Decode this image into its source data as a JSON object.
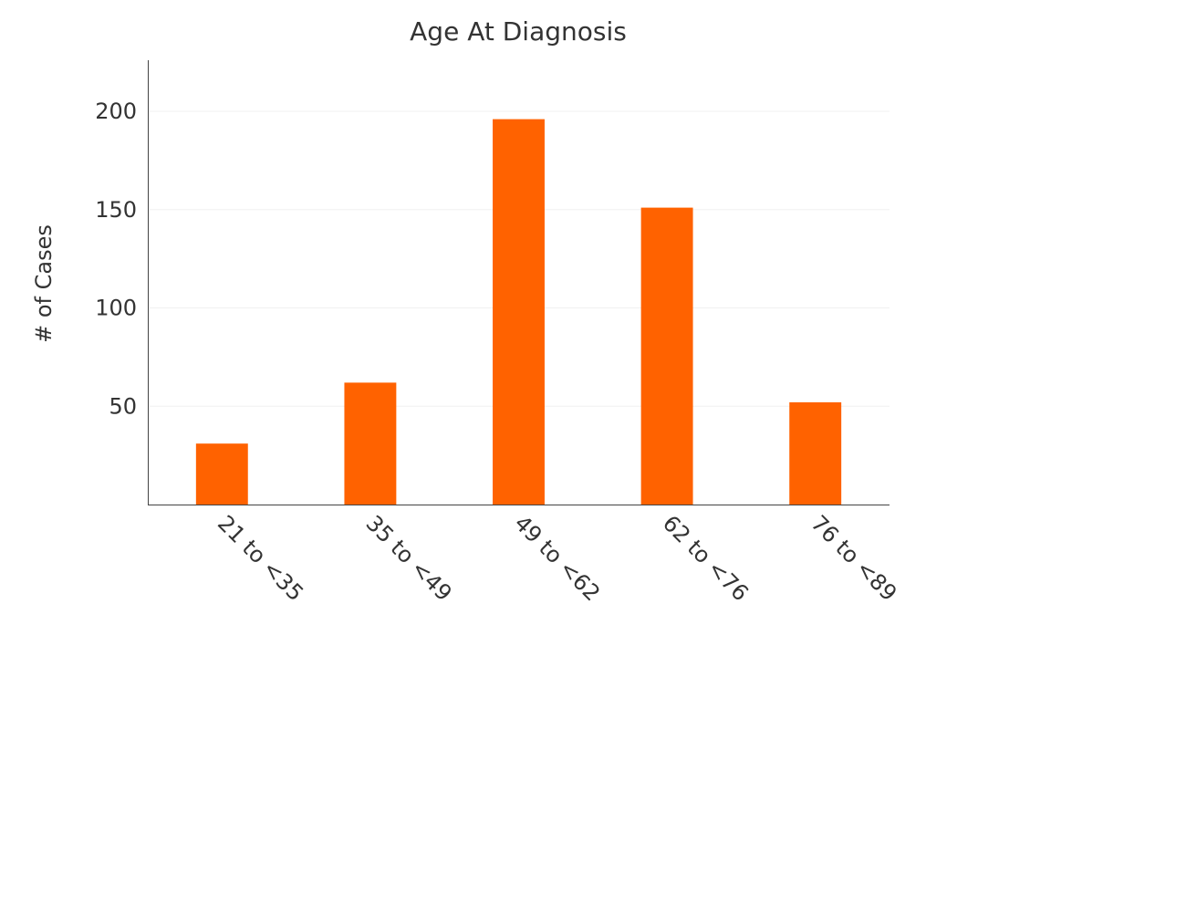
{
  "chart_data": {
    "type": "bar",
    "title": "Age At Diagnosis",
    "xlabel": "",
    "ylabel": "# of Cases",
    "categories": [
      "21 to <35",
      "35 to <49",
      "49 to <62",
      "62 to <76",
      "76 to <89"
    ],
    "values": [
      31,
      62,
      196,
      151,
      52
    ],
    "ylim": [
      0,
      225
    ],
    "yticks": [
      50,
      100,
      150,
      200
    ],
    "grid": true,
    "legend": "none",
    "bar_color": "#ff6200"
  }
}
